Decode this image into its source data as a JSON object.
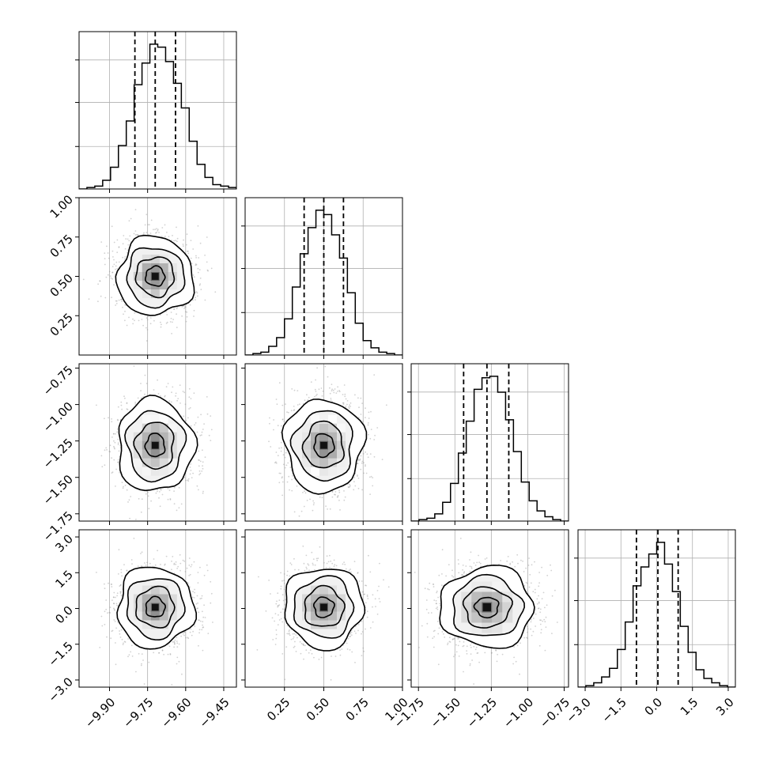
{
  "chart_data": {
    "type": "corner",
    "title": "",
    "parameters": [
      {
        "range": [
          -10.02,
          -9.4
        ],
        "ticks": [
          -9.9,
          -9.75,
          -9.6,
          -9.45
        ],
        "tick_labels": [
          "−9.90",
          "−9.75",
          "−9.60",
          "−9.45"
        ],
        "median": -9.72,
        "q16": -9.8,
        "q84": -9.64,
        "sigma": 0.075
      },
      {
        "range": [
          0.0,
          1.0
        ],
        "ticks": [
          0.25,
          0.5,
          0.75,
          1.0
        ],
        "tick_labels": [
          "0.25",
          "0.50",
          "0.75",
          "1.00"
        ],
        "median": 0.5,
        "q16": 0.375,
        "q84": 0.625,
        "sigma": 0.125
      },
      {
        "range": [
          -1.8,
          -0.72
        ],
        "ticks": [
          -1.75,
          -1.5,
          -1.25,
          -1.0,
          -0.75
        ],
        "tick_labels": [
          "−1.75",
          "−1.50",
          "−1.25",
          "−1.00",
          "−0.75"
        ],
        "median": -1.28,
        "q16": -1.44,
        "q84": -1.13,
        "sigma": 0.16
      },
      {
        "range": [
          -3.3,
          3.3
        ],
        "ticks": [
          -3.0,
          -1.5,
          0.0,
          1.5,
          3.0
        ],
        "tick_labels": [
          "−3.0",
          "−1.5",
          "0.0",
          "1.5",
          "3.0"
        ],
        "median": 0.05,
        "q16": -0.85,
        "q84": 0.9,
        "sigma": 0.85
      }
    ],
    "histograms": [
      [
        0,
        1,
        2,
        6,
        15,
        30,
        47,
        72,
        87,
        100,
        98,
        88,
        73,
        56,
        33,
        17,
        8,
        3,
        2,
        1
      ],
      [
        0,
        1,
        2,
        6,
        12,
        25,
        47,
        70,
        88,
        100,
        97,
        83,
        67,
        43,
        22,
        10,
        5,
        2,
        1,
        0
      ],
      [
        0,
        1,
        2,
        5,
        13,
        26,
        47,
        69,
        91,
        99,
        100,
        89,
        70,
        48,
        27,
        14,
        7,
        3,
        1,
        0
      ],
      [
        0,
        1,
        3,
        7,
        13,
        26,
        45,
        70,
        83,
        92,
        100,
        85,
        66,
        42,
        24,
        12,
        6,
        3,
        1,
        0
      ]
    ],
    "hist_quantile_lines": "dashed (16%, 50%, 84%)",
    "contour_levels": [
      "0.5 sigma",
      "1 sigma",
      "1.5 sigma",
      "2 sigma"
    ],
    "grid": true,
    "legend": "none"
  }
}
